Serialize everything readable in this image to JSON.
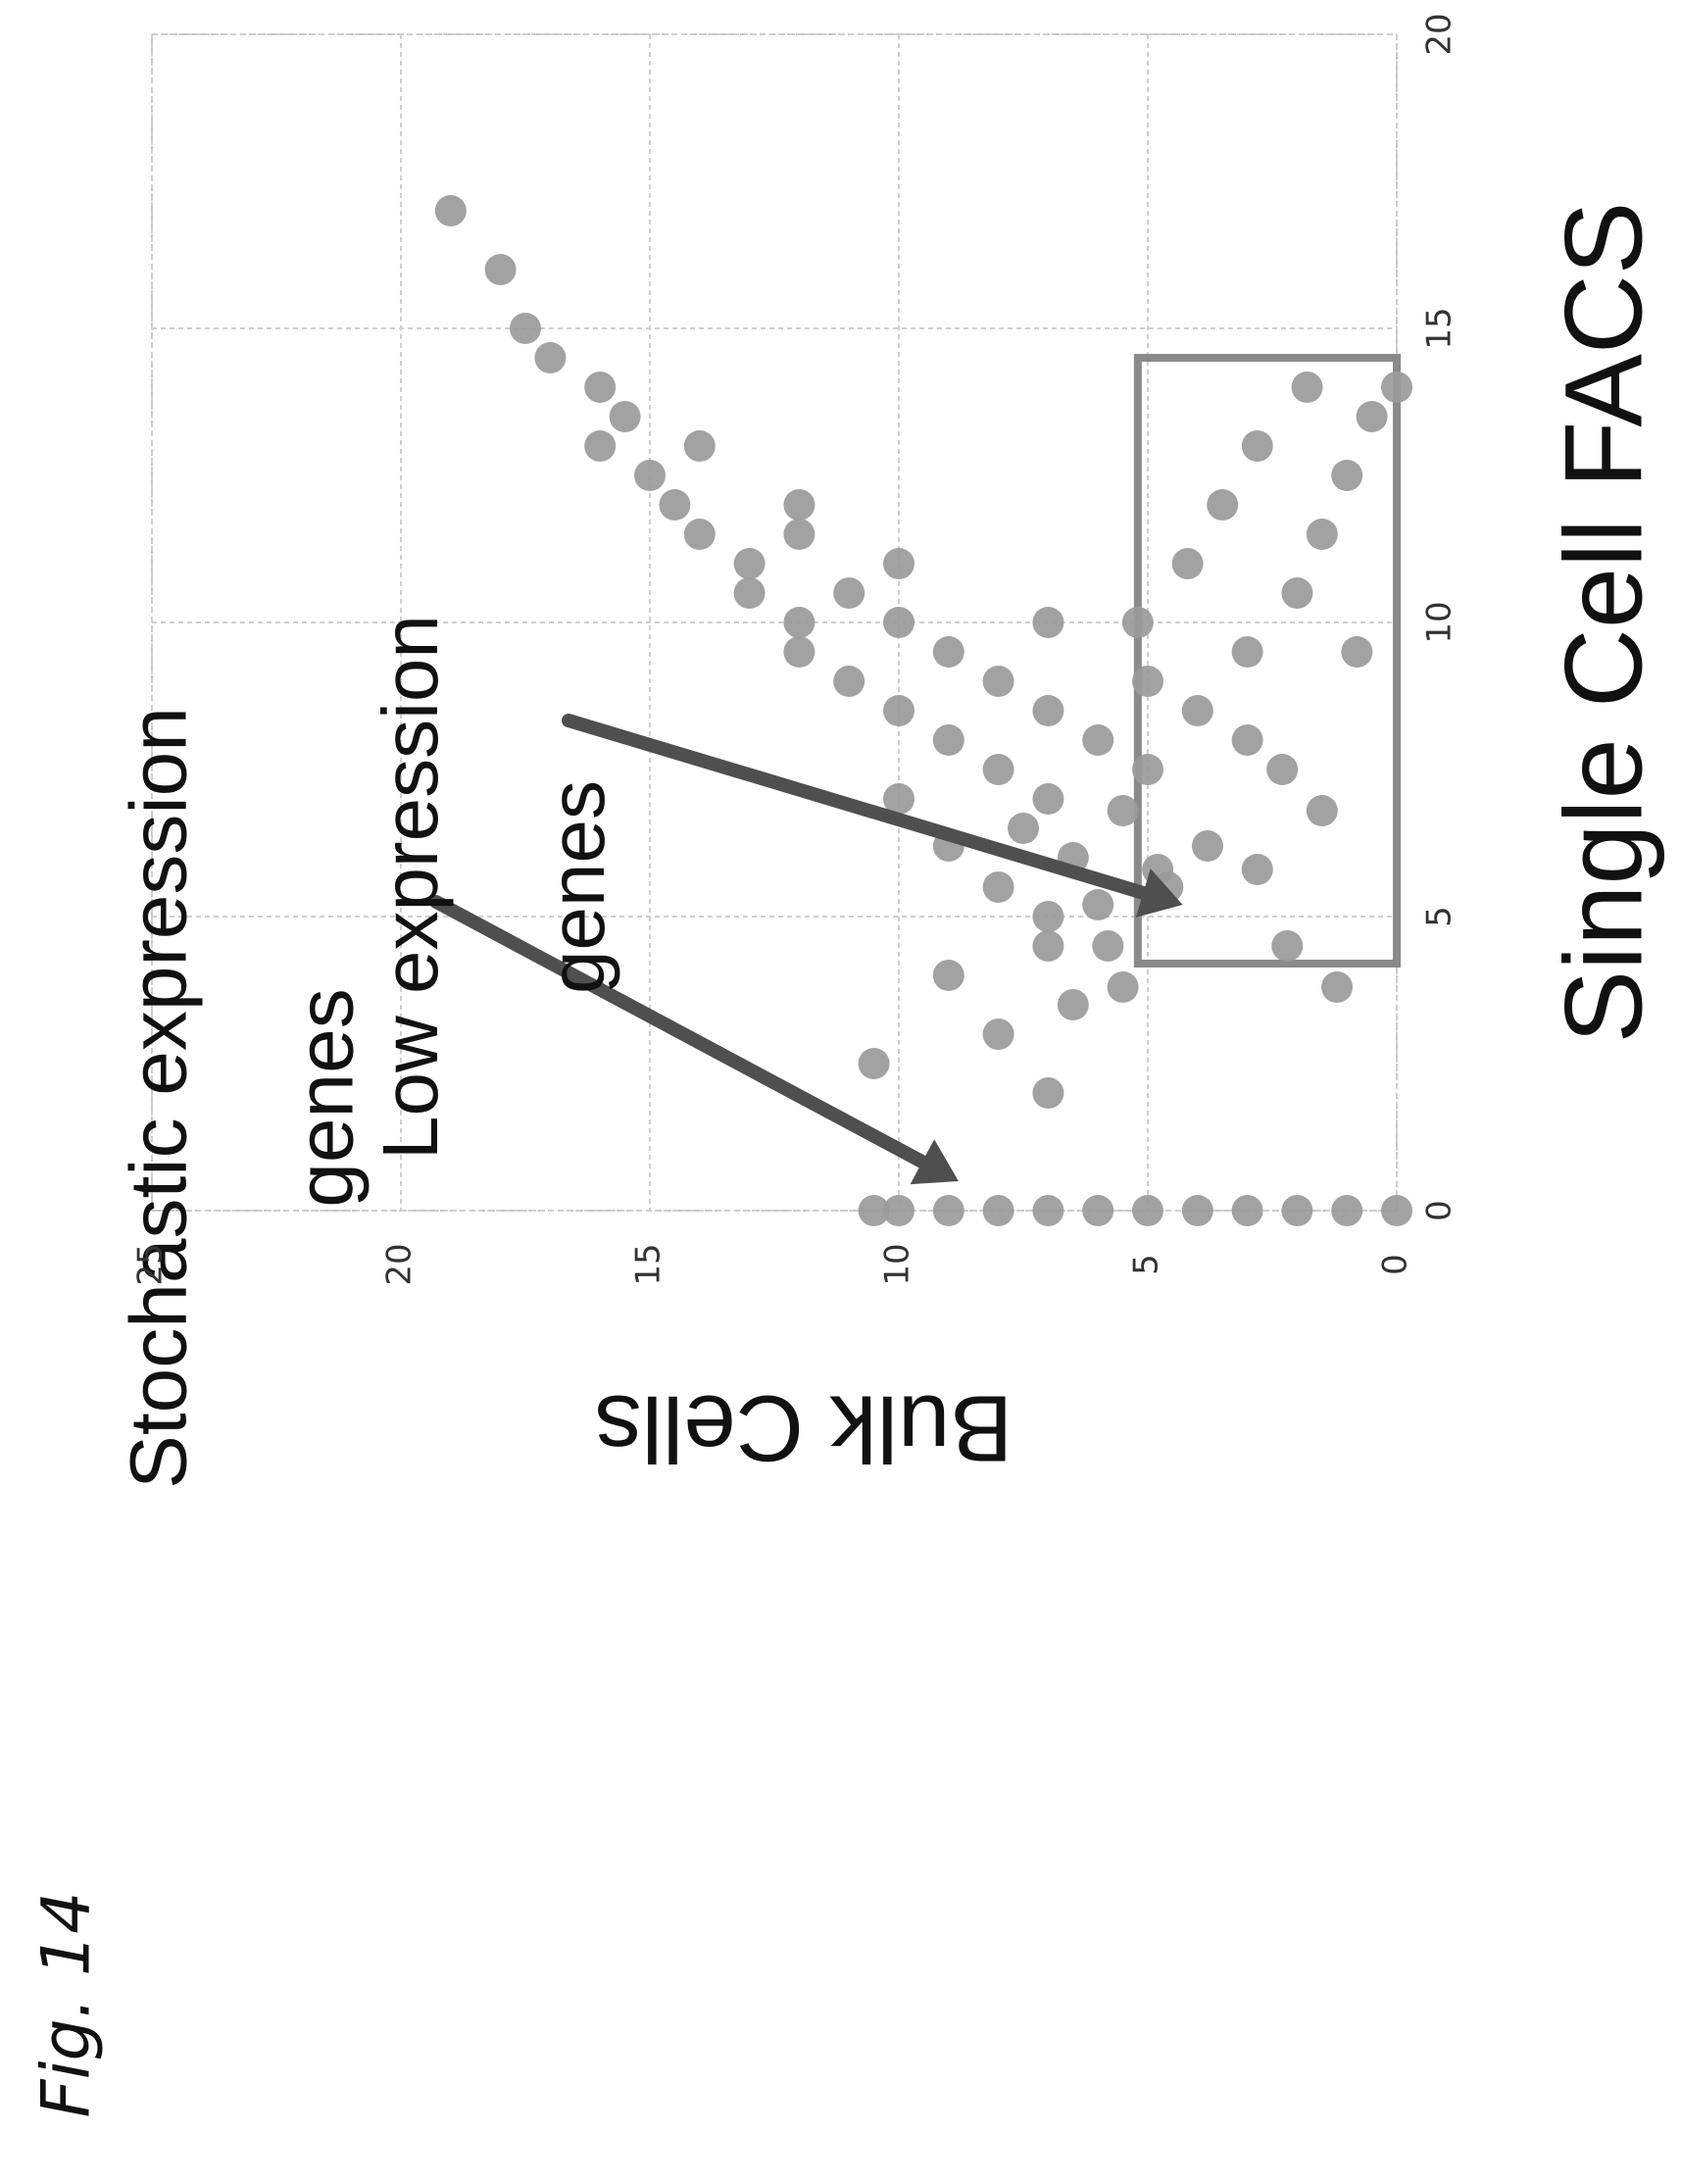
{
  "figure_label": "Fig. 14",
  "chart_data": {
    "type": "scatter",
    "orientation": "rotated 90 degrees counter-clockwise on page",
    "xlabel": "Single Cell FACS",
    "ylabel": "Bulk Cells",
    "xlim": [
      0,
      20
    ],
    "ylim": [
      0,
      25
    ],
    "x_ticks": [
      "0",
      "5",
      "10",
      "15",
      "20"
    ],
    "y_ticks": [
      "0",
      "5",
      "10",
      "15",
      "20",
      "25"
    ],
    "grid": true,
    "point_color": "#9a9a9a",
    "annotations": [
      {
        "text_lines": [
          "Stochastic expression",
          "genes"
        ],
        "arrow_to": [
          0.5,
          8.8
        ],
        "label_at": [
          -1.2,
          20.5
        ]
      },
      {
        "text_lines": [
          "Low expression",
          "genes"
        ],
        "arrow_to": [
          5.2,
          4.3
        ],
        "label_at": [
          1.5,
          17.7
        ]
      }
    ],
    "highlight_box": {
      "x_range": [
        4.2,
        14.5
      ],
      "y_range": [
        0,
        5.2
      ],
      "color": "#8a8a8a"
    },
    "series": [
      {
        "values_note": "approximate visible points",
        "points": [
          [
            0,
            0
          ],
          [
            0,
            1
          ],
          [
            0,
            2
          ],
          [
            0,
            3
          ],
          [
            0,
            4
          ],
          [
            0,
            5
          ],
          [
            0,
            6
          ],
          [
            0,
            7
          ],
          [
            0,
            8
          ],
          [
            0,
            9
          ],
          [
            0,
            10
          ],
          [
            0,
            10.5
          ],
          [
            2,
            7
          ],
          [
            2.5,
            10.5
          ],
          [
            3,
            8
          ],
          [
            3.5,
            6.5
          ],
          [
            4,
            9
          ],
          [
            4.5,
            7
          ],
          [
            3.8,
            5.5
          ],
          [
            4.5,
            5.8
          ],
          [
            5,
            7
          ],
          [
            5.2,
            6
          ],
          [
            5.5,
            8
          ],
          [
            5.8,
            4.8
          ],
          [
            6,
            6.5
          ],
          [
            6.2,
            9
          ],
          [
            6.5,
            7.5
          ],
          [
            6.8,
            5.5
          ],
          [
            7,
            10
          ],
          [
            7,
            7
          ],
          [
            7.5,
            8
          ],
          [
            7.5,
            5
          ],
          [
            8,
            9
          ],
          [
            8,
            6
          ],
          [
            8.5,
            10
          ],
          [
            8.5,
            7
          ],
          [
            9,
            11
          ],
          [
            9,
            8
          ],
          [
            9,
            5
          ],
          [
            9.5,
            12
          ],
          [
            9.5,
            9
          ],
          [
            10,
            12
          ],
          [
            10,
            10
          ],
          [
            10,
            7
          ],
          [
            10.5,
            13
          ],
          [
            10.5,
            11
          ],
          [
            11,
            13
          ],
          [
            11,
            10
          ],
          [
            11.5,
            14
          ],
          [
            11.5,
            12
          ],
          [
            12,
            14.5
          ],
          [
            12,
            12
          ],
          [
            12.5,
            15
          ],
          [
            13,
            14
          ],
          [
            13,
            16
          ],
          [
            13.5,
            15.5
          ],
          [
            14,
            16
          ],
          [
            14.5,
            17
          ],
          [
            15,
            17.5
          ],
          [
            16,
            18
          ],
          [
            17,
            19
          ],
          [
            8.5,
            4
          ],
          [
            9.5,
            3
          ],
          [
            10.5,
            2
          ],
          [
            11.5,
            1.5
          ],
          [
            12.5,
            1
          ],
          [
            13.5,
            0.5
          ],
          [
            14,
            0
          ],
          [
            14,
            1.8
          ],
          [
            13,
            2.8
          ],
          [
            12,
            3.5
          ],
          [
            11,
            4.2
          ],
          [
            10,
            5.2
          ],
          [
            8,
            3
          ],
          [
            9.5,
            0.8
          ],
          [
            5.5,
            4.6
          ],
          [
            6.2,
            3.8
          ],
          [
            5.8,
            2.8
          ],
          [
            4.5,
            2.2
          ],
          [
            3.8,
            1.2
          ],
          [
            6.8,
            1.5
          ],
          [
            7.5,
            2.3
          ]
        ]
      }
    ]
  }
}
